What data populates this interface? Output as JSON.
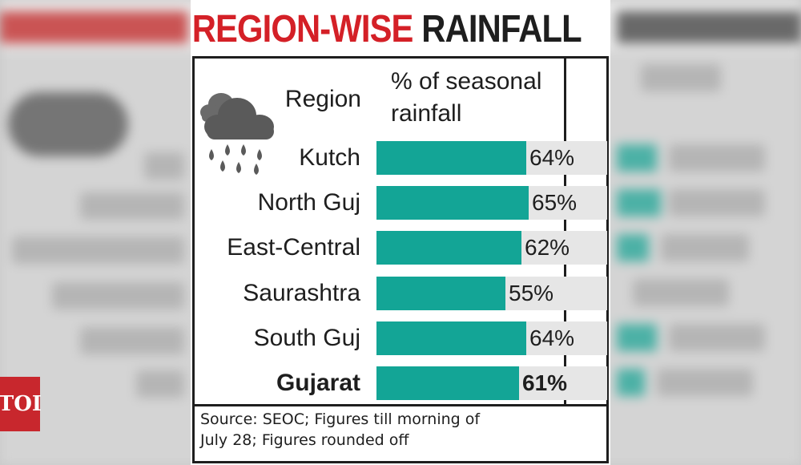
{
  "title": {
    "part1": "REGION-WISE",
    "part2": "RAINFALL"
  },
  "branding": {
    "badge": "TOI"
  },
  "icons": {
    "weather": "rain-cloud-icon"
  },
  "colors": {
    "title_red": "#d42027",
    "bar_teal": "#13a596",
    "track_grey": "#e6e6e6"
  },
  "chart_data": {
    "type": "bar",
    "orientation": "horizontal",
    "column_headers": {
      "category": "Region",
      "value_line1": "% of seasonal",
      "value_line2": "rainfall"
    },
    "categories": [
      "Kutch",
      "North Guj",
      "East-Central",
      "Saurashtra",
      "South Guj",
      "Gujarat"
    ],
    "values": [
      64,
      65,
      62,
      55,
      64,
      61
    ],
    "value_labels": [
      "64%",
      "65%",
      "62%",
      "55%",
      "64%",
      "61%"
    ],
    "xlim": [
      0,
      100
    ],
    "bold_category": "Gujarat"
  },
  "source": {
    "line1": "Source: SEOC; Figures till morning of",
    "line2": "July 28; Figures rounded off"
  }
}
